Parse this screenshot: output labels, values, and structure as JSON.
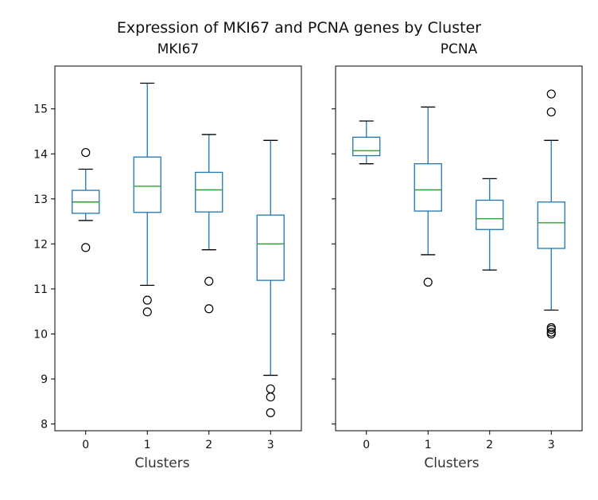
{
  "suptitle": "Expression of MKI67 and PCNA genes by Cluster",
  "chart_data": [
    {
      "type": "boxplot",
      "title": "MKI67",
      "xlabel": "Clusters",
      "ylabel": "",
      "categories": [
        "0",
        "1",
        "2",
        "3"
      ],
      "ylim": [
        7.85,
        15.95
      ],
      "yticks": [
        8,
        9,
        10,
        11,
        12,
        13,
        14,
        15
      ],
      "boxes": [
        {
          "whislo": 12.52,
          "q1": 12.68,
          "med": 12.93,
          "q3": 13.19,
          "whishi": 13.66,
          "fliers": [
            14.03,
            11.92
          ]
        },
        {
          "whislo": 11.08,
          "q1": 12.7,
          "med": 13.28,
          "q3": 13.93,
          "whishi": 15.57,
          "fliers": [
            10.75,
            10.49
          ]
        },
        {
          "whislo": 11.87,
          "q1": 12.71,
          "med": 13.2,
          "q3": 13.59,
          "whishi": 14.43,
          "fliers": [
            11.17,
            10.56
          ]
        },
        {
          "whislo": 9.08,
          "q1": 11.19,
          "med": 12.0,
          "q3": 12.64,
          "whishi": 14.3,
          "fliers": [
            8.78,
            8.6,
            8.25
          ]
        }
      ]
    },
    {
      "type": "boxplot",
      "title": "PCNA",
      "xlabel": "Clusters",
      "ylabel": "",
      "categories": [
        "0",
        "1",
        "2",
        "3"
      ],
      "ylim": [
        7.85,
        15.95
      ],
      "yticks": [],
      "boxes": [
        {
          "whislo": 13.78,
          "q1": 13.96,
          "med": 14.07,
          "q3": 14.37,
          "whishi": 14.73,
          "fliers": []
        },
        {
          "whislo": 11.76,
          "q1": 12.73,
          "med": 13.2,
          "q3": 13.78,
          "whishi": 15.04,
          "fliers": [
            11.15
          ]
        },
        {
          "whislo": 11.42,
          "q1": 12.32,
          "med": 12.56,
          "q3": 12.97,
          "whishi": 13.45,
          "fliers": []
        },
        {
          "whislo": 10.53,
          "q1": 11.9,
          "med": 12.47,
          "q3": 12.93,
          "whishi": 14.3,
          "fliers": [
            15.33,
            14.93,
            10.14,
            10.1,
            10.04,
            10.0
          ]
        }
      ]
    }
  ],
  "colors": {
    "box": "#1f77b4",
    "median": "#2ca02c",
    "axis": "#000000"
  }
}
